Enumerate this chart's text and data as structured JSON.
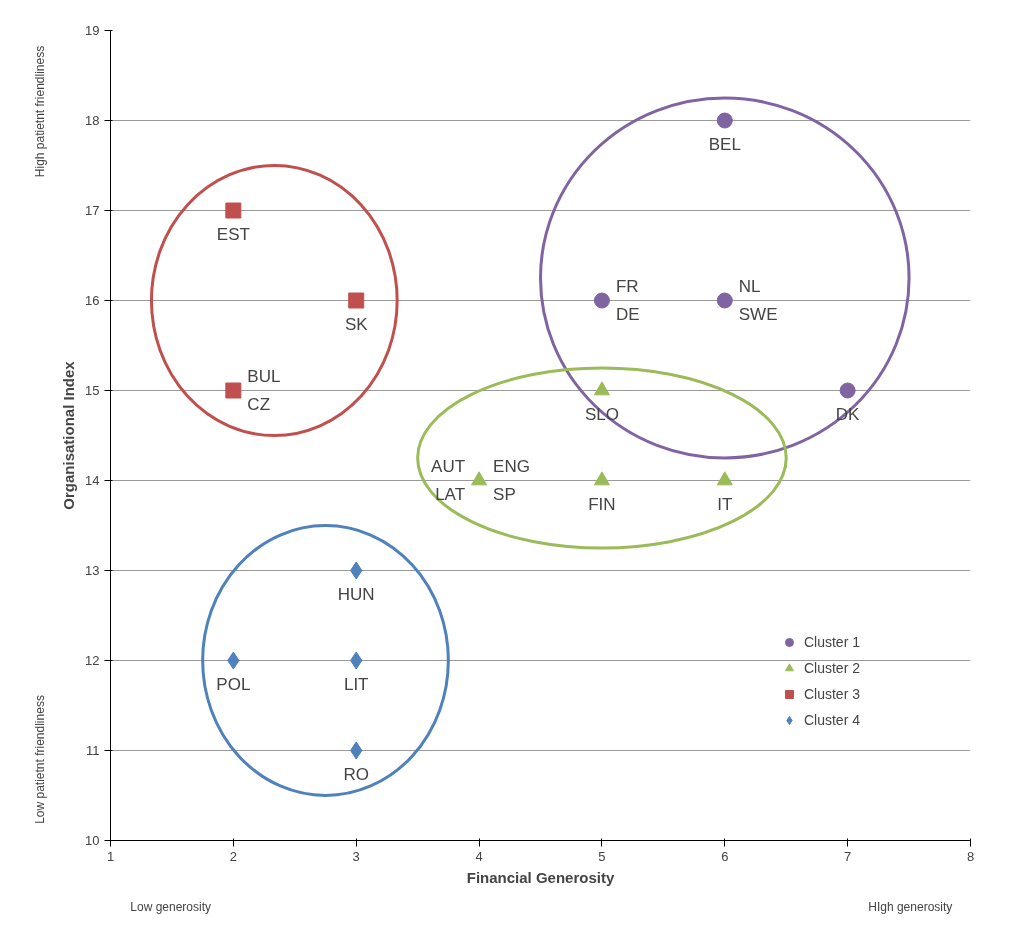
{
  "chart_data": {
    "type": "scatter",
    "xlabel": "Financial Generosity",
    "ylabel": "Organisational Index",
    "xlim": [
      1,
      8
    ],
    "xticks": [
      1,
      2,
      3,
      4,
      5,
      6,
      7,
      8
    ],
    "ylim": [
      10,
      19
    ],
    "yticks": [
      10,
      11,
      12,
      13,
      14,
      15,
      16,
      17,
      18,
      19
    ],
    "grid": "y",
    "legend": "bottom right",
    "series": [
      {
        "name": "Cluster 1",
        "color": "#8064a2",
        "marker": "circle",
        "x": [
          6,
          5,
          6,
          7
        ],
        "values": [
          18,
          16,
          16,
          15
        ]
      },
      {
        "name": "Cluster 2",
        "color": "#9bbb59",
        "marker": "triangle",
        "x": [
          5,
          4,
          5,
          6
        ],
        "values": [
          15,
          14,
          14,
          14
        ]
      },
      {
        "name": "Cluster 3",
        "color": "#c0504d",
        "marker": "square",
        "x": [
          2,
          3,
          2
        ],
        "values": [
          17,
          16,
          15
        ]
      },
      {
        "name": "Cluster 4",
        "color": "#4f81bd",
        "marker": "diamond",
        "x": [
          3,
          2,
          3,
          3
        ],
        "values": [
          13,
          12,
          12,
          11
        ]
      }
    ],
    "annotations": [
      "Low generosity",
      "HIgh generosity",
      "High patietnt friendliness",
      "Low patietnt friendliness",
      {
        "text": "BEL",
        "x": 6,
        "y": 18
      },
      {
        "text": "FR",
        "x": 5,
        "y": 16
      },
      {
        "text": "DE",
        "x": 5,
        "y": 16
      },
      {
        "text": "NL",
        "x": 6,
        "y": 16
      },
      {
        "text": "SWE",
        "x": 6,
        "y": 16
      },
      {
        "text": "DK",
        "x": 7,
        "y": 15
      },
      {
        "text": "SLO",
        "x": 5,
        "y": 15
      },
      {
        "text": "AUT",
        "x": 4,
        "y": 14
      },
      {
        "text": "LAT",
        "x": 4,
        "y": 14
      },
      {
        "text": "ENG",
        "x": 4,
        "y": 14
      },
      {
        "text": "SP",
        "x": 4,
        "y": 14
      },
      {
        "text": "FIN",
        "x": 5,
        "y": 14
      },
      {
        "text": "IT",
        "x": 6,
        "y": 14
      },
      {
        "text": "EST",
        "x": 2,
        "y": 17
      },
      {
        "text": "SK",
        "x": 3,
        "y": 16
      },
      {
        "text": "BUL",
        "x": 2,
        "y": 15
      },
      {
        "text": "CZ",
        "x": 2,
        "y": 15
      },
      {
        "text": "HUN",
        "x": 3,
        "y": 13
      },
      {
        "text": "POL",
        "x": 2,
        "y": 12
      },
      {
        "text": "LIT",
        "x": 3,
        "y": 12
      },
      {
        "text": "RO",
        "x": 3,
        "y": 11
      }
    ]
  }
}
